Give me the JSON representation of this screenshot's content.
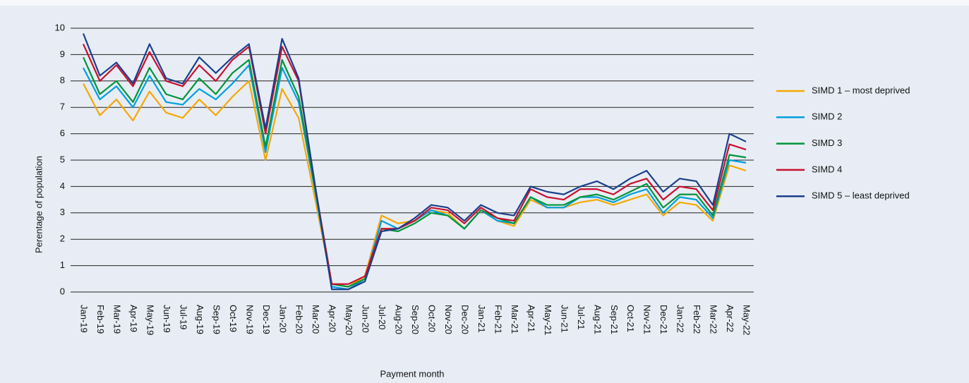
{
  "chart_data": {
    "type": "line",
    "x_label": "Payment month",
    "y_label": "Perentage of population",
    "categories": [
      "Jan-19",
      "Feb-19",
      "Mar-19",
      "Apr-19",
      "May-19",
      "Jun-19",
      "Jul-19",
      "Aug-19",
      "Sep-19",
      "Oct-19",
      "Nov-19",
      "Dec-19",
      "Jan-20",
      "Feb-20",
      "Mar-20",
      "Apr-20",
      "May-20",
      "Jun-20",
      "Jul-20",
      "Aug-20",
      "Sep-20",
      "Oct-20",
      "Nov-20",
      "Dec-20",
      "Jan-21",
      "Feb-21",
      "Mar-21",
      "Apr-21",
      "May-21",
      "Jun-21",
      "Jul-21",
      "Aug-21",
      "Sep-21",
      "Oct-21",
      "Nov-21",
      "Dec-21",
      "Jan-22",
      "Feb-22",
      "Mar-22",
      "Apr-22",
      "May-22"
    ],
    "ylim": [
      0,
      10
    ],
    "yticks": [
      0,
      1,
      2,
      3,
      4,
      5,
      6,
      7,
      8,
      9,
      10
    ],
    "grid": true,
    "legend": "right",
    "series": [
      {
        "name": "SIMD 1 – most deprived",
        "color": "#f5a800",
        "values": [
          7.9,
          6.7,
          7.3,
          6.5,
          7.6,
          6.8,
          6.6,
          7.3,
          6.7,
          7.4,
          8.0,
          5.0,
          7.7,
          6.6,
          3.5,
          0.3,
          0.2,
          0.6,
          2.9,
          2.6,
          2.7,
          3.1,
          3.0,
          2.4,
          3.1,
          2.7,
          2.5,
          3.5,
          3.2,
          3.2,
          3.4,
          3.5,
          3.3,
          3.5,
          3.7,
          2.9,
          3.4,
          3.3,
          2.7,
          4.8,
          4.6
        ]
      },
      {
        "name": "SIMD 2",
        "color": "#009fdf",
        "values": [
          8.5,
          7.3,
          7.8,
          7.0,
          8.2,
          7.2,
          7.1,
          7.7,
          7.3,
          7.9,
          8.6,
          5.3,
          8.5,
          7.2,
          3.8,
          0.2,
          0.1,
          0.5,
          2.7,
          2.4,
          2.7,
          3.1,
          2.9,
          2.4,
          3.1,
          2.7,
          2.6,
          3.6,
          3.2,
          3.2,
          3.6,
          3.6,
          3.4,
          3.7,
          3.9,
          3.0,
          3.6,
          3.5,
          2.8,
          5.0,
          4.9
        ]
      },
      {
        "name": "SIMD 3",
        "color": "#00953a",
        "values": [
          8.9,
          7.5,
          8.0,
          7.2,
          8.5,
          7.5,
          7.3,
          8.1,
          7.5,
          8.3,
          8.8,
          5.5,
          8.8,
          7.4,
          3.9,
          0.3,
          0.2,
          0.5,
          2.4,
          2.3,
          2.6,
          3.0,
          2.9,
          2.4,
          3.1,
          2.8,
          2.6,
          3.6,
          3.3,
          3.3,
          3.6,
          3.7,
          3.5,
          3.8,
          4.1,
          3.2,
          3.7,
          3.7,
          2.9,
          5.2,
          5.1
        ]
      },
      {
        "name": "SIMD 4",
        "color": "#c8102e",
        "values": [
          9.4,
          8.0,
          8.6,
          7.8,
          9.1,
          8.0,
          7.8,
          8.6,
          8.0,
          8.8,
          9.3,
          6.0,
          9.3,
          8.0,
          4.0,
          0.3,
          0.3,
          0.6,
          2.4,
          2.4,
          2.7,
          3.2,
          3.1,
          2.6,
          3.2,
          2.8,
          2.7,
          3.9,
          3.6,
          3.5,
          3.9,
          3.9,
          3.7,
          4.1,
          4.3,
          3.5,
          4.0,
          3.9,
          3.1,
          5.6,
          5.4
        ]
      },
      {
        "name": "SIMD 5 – least deprived",
        "color": "#1b3f8b",
        "values": [
          9.8,
          8.2,
          8.7,
          7.9,
          9.4,
          8.1,
          7.9,
          8.9,
          8.3,
          8.9,
          9.4,
          6.2,
          9.6,
          8.1,
          4.0,
          0.1,
          0.1,
          0.4,
          2.3,
          2.4,
          2.8,
          3.3,
          3.2,
          2.7,
          3.3,
          3.0,
          2.9,
          4.0,
          3.8,
          3.7,
          4.0,
          4.2,
          3.9,
          4.3,
          4.6,
          3.8,
          4.3,
          4.2,
          3.3,
          6.0,
          5.7
        ]
      }
    ]
  }
}
